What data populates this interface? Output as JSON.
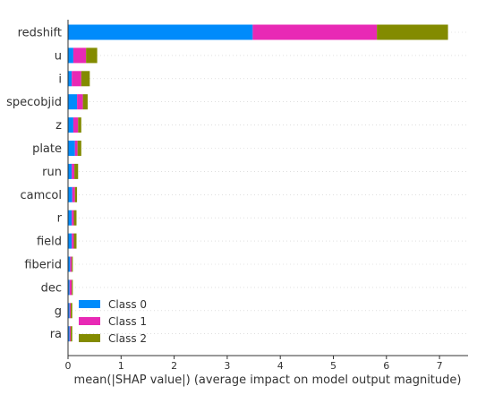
{
  "chart_data": {
    "type": "bar",
    "orientation": "horizontal",
    "stacked": true,
    "categories": [
      "redshift",
      "u",
      "i",
      "specobjid",
      "z",
      "plate",
      "run",
      "camcol",
      "r",
      "field",
      "fiberid",
      "dec",
      "g",
      "ra"
    ],
    "series": [
      {
        "name": "Class 0",
        "color": "#008bfb",
        "values": [
          3.48,
          0.1,
          0.07,
          0.17,
          0.1,
          0.13,
          0.07,
          0.08,
          0.07,
          0.07,
          0.04,
          0.03,
          0.03,
          0.03
        ]
      },
      {
        "name": "Class 1",
        "color": "#e829b5",
        "values": [
          2.34,
          0.24,
          0.18,
          0.11,
          0.09,
          0.05,
          0.05,
          0.05,
          0.04,
          0.04,
          0.03,
          0.04,
          0.02,
          0.02
        ]
      },
      {
        "name": "Class 2",
        "color": "#838b00",
        "values": [
          1.34,
          0.21,
          0.16,
          0.09,
          0.06,
          0.07,
          0.07,
          0.04,
          0.05,
          0.05,
          0.02,
          0.02,
          0.03,
          0.03
        ]
      }
    ],
    "xlabel": "mean(|SHAP value|) (average impact on model output magnitude)",
    "ylabel": "",
    "xlim": [
      0,
      7.5
    ],
    "xticks": [
      0,
      1,
      2,
      3,
      4,
      5,
      6,
      7
    ],
    "grid": false,
    "legend_position": "lower-left"
  }
}
